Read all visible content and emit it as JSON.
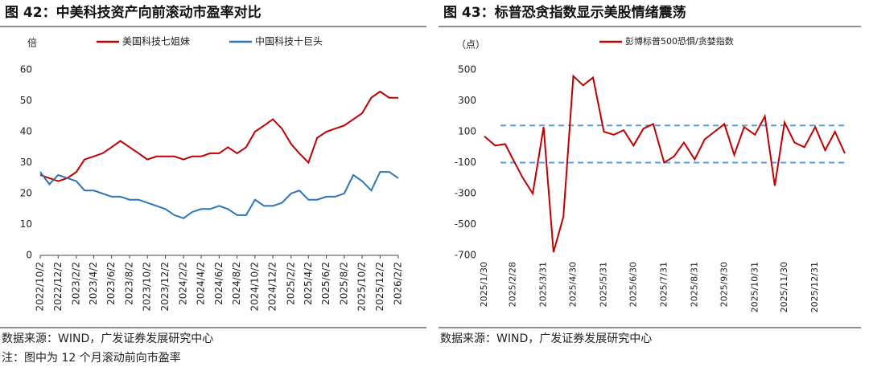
{
  "chart_data": [
    {
      "type": "line",
      "title": "图 42：中美科技资产向前滚动市盈率对比",
      "y_label": "倍",
      "x": [
        "2022/10/2",
        "2022/11/2",
        "2022/12/2",
        "2023/1/2",
        "2023/2/2",
        "2023/3/2",
        "2023/4/2",
        "2023/5/2",
        "2023/6/2",
        "2023/7/2",
        "2023/8/2",
        "2023/9/2",
        "2023/10/2",
        "2023/11/2",
        "2023/12/2",
        "2024/1/2",
        "2024/2/2",
        "2024/3/2",
        "2024/4/2",
        "2024/5/2",
        "2024/6/2",
        "2024/7/2",
        "2024/8/2",
        "2024/9/2",
        "2024/10/2",
        "2024/11/2",
        "2024/12/2",
        "2025/1/2",
        "2025/2/2",
        "2025/3/2",
        "2025/4/2",
        "2025/5/2",
        "2025/6/2",
        "2025/7/2",
        "2025/8/2",
        "2025/9/2",
        "2025/10/2",
        "2025/11/2",
        "2025/12/2",
        "2026/1/2",
        "2026/2/2"
      ],
      "series": [
        {
          "name": "美国科技七姐妹",
          "color": "#c00000",
          "values": [
            26,
            25,
            24,
            25,
            27,
            31,
            32,
            33,
            35,
            37,
            35,
            33,
            31,
            32,
            32,
            32,
            31,
            32,
            32,
            33,
            33,
            35,
            33,
            35,
            40,
            42,
            44,
            41,
            36,
            33,
            30,
            38,
            40,
            41,
            42,
            44,
            46,
            51,
            53,
            51,
            51
          ]
        },
        {
          "name": "中国科技十巨头",
          "color": "#2e75b6",
          "values": [
            27,
            23,
            26,
            25,
            24,
            21,
            21,
            20,
            19,
            19,
            18,
            18,
            17,
            16,
            15,
            13,
            12,
            14,
            15,
            15,
            16,
            15,
            13,
            13,
            18,
            16,
            16,
            17,
            20,
            21,
            18,
            18,
            19,
            19,
            20,
            26,
            24,
            21,
            27,
            27,
            25
          ]
        }
      ],
      "xlim": [
        "2022/10/2",
        "2026/2/2"
      ],
      "xticks": [
        "2022/10/2",
        "2022/12/2",
        "2023/2/2",
        "2023/4/2",
        "2023/6/2",
        "2023/8/2",
        "2023/10/2",
        "2023/12/2",
        "2024/2/2",
        "2024/4/2",
        "2024/6/2",
        "2024/8/2",
        "2024/10/2",
        "2024/12/2",
        "2025/2/2",
        "2025/4/2",
        "2025/6/2",
        "2025/8/2",
        "2025/10/2",
        "2025/12/2",
        "2026/2/2"
      ],
      "ylim": [
        0,
        60
      ],
      "yticks": [
        0,
        10,
        20,
        30,
        40,
        50,
        60
      ],
      "source": "数据来源：WIND，广发证券发展研究中心",
      "note": "注：图中为 12 个月滚动前向市盈率"
    },
    {
      "type": "line",
      "title": "图 43：标普恐贪指数显示美股情绪震荡",
      "y_label": "（点）",
      "x": [
        "2025/1/30",
        "2025/2/10",
        "2025/2/20",
        "2025/2/28",
        "2025/3/10",
        "2025/3/20",
        "2025/3/31",
        "2025/4/10",
        "2025/4/20",
        "2025/4/30",
        "2025/5/10",
        "2025/5/20",
        "2025/5/31",
        "2025/6/10",
        "2025/6/20",
        "2025/6/30",
        "2025/7/10",
        "2025/7/20",
        "2025/7/31",
        "2025/8/10",
        "2025/8/20",
        "2025/8/31",
        "2025/9/10",
        "2025/9/20",
        "2025/9/30",
        "2025/10/10",
        "2025/10/20",
        "2025/10/31",
        "2025/11/10",
        "2025/11/20",
        "2025/11/30",
        "2025/12/10",
        "2025/12/20",
        "2025/12/31",
        "2026/1/10",
        "2026/1/20",
        "2026/1/30"
      ],
      "series": [
        {
          "name": "彭博标普500恐惧/贪婪指数",
          "color": "#c00000",
          "values": [
            70,
            10,
            20,
            -80,
            -200,
            -300,
            130,
            -680,
            -450,
            460,
            400,
            450,
            100,
            80,
            110,
            10,
            120,
            150,
            -100,
            -60,
            30,
            -80,
            50,
            100,
            150,
            -50,
            130,
            80,
            200,
            -250,
            160,
            30,
            0,
            130,
            -20,
            100,
            -40
          ]
        }
      ],
      "reference_lines": [
        140,
        -100
      ],
      "reference_color": "#5b9bd5",
      "xlim": [
        "2025/1/30",
        "2026/1/30"
      ],
      "xticks": [
        "2025/1/30",
        "2025/2/28",
        "2025/3/31",
        "2025/4/30",
        "2025/5/31",
        "2025/6/30",
        "2025/7/31",
        "2025/8/31",
        "2025/9/30",
        "2025/10/31",
        "2025/11/30",
        "2025/12/31"
      ],
      "ylim": [
        -700,
        500
      ],
      "yticks": [
        -700,
        -500,
        -300,
        -100,
        100,
        300,
        500
      ],
      "source": "数据来源：WIND，广发证券发展研究中心"
    }
  ]
}
